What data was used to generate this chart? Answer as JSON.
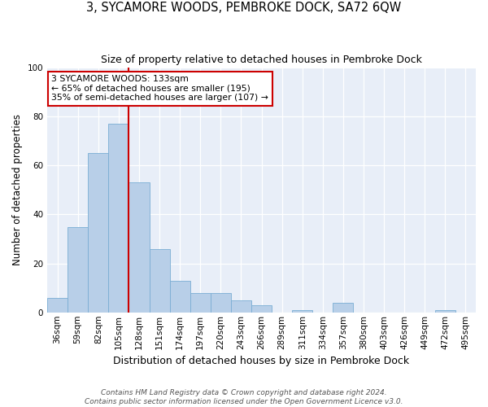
{
  "title": "3, SYCAMORE WOODS, PEMBROKE DOCK, SA72 6QW",
  "subtitle": "Size of property relative to detached houses in Pembroke Dock",
  "xlabel": "Distribution of detached houses by size in Pembroke Dock",
  "ylabel": "Number of detached properties",
  "bin_labels": [
    "36sqm",
    "59sqm",
    "82sqm",
    "105sqm",
    "128sqm",
    "151sqm",
    "174sqm",
    "197sqm",
    "220sqm",
    "243sqm",
    "266sqm",
    "289sqm",
    "311sqm",
    "334sqm",
    "357sqm",
    "380sqm",
    "403sqm",
    "426sqm",
    "449sqm",
    "472sqm",
    "495sqm"
  ],
  "bin_values": [
    6,
    35,
    65,
    77,
    53,
    26,
    13,
    8,
    8,
    5,
    3,
    0,
    1,
    0,
    4,
    0,
    0,
    0,
    0,
    1,
    0
  ],
  "bar_color": "#b8cfe8",
  "bar_edge_color": "#7aadd4",
  "vline_x_index": 4,
  "vline_color": "#cc0000",
  "ylim": [
    0,
    100
  ],
  "annotation_title": "3 SYCAMORE WOODS: 133sqm",
  "annotation_line1": "← 65% of detached houses are smaller (195)",
  "annotation_line2": "35% of semi-detached houses are larger (107) →",
  "annotation_box_facecolor": "#ffffff",
  "annotation_box_edgecolor": "#cc0000",
  "footnote1": "Contains HM Land Registry data © Crown copyright and database right 2024.",
  "footnote2": "Contains public sector information licensed under the Open Government Licence v3.0.",
  "bg_color": "#e8eef8",
  "title_fontsize": 10.5,
  "subtitle_fontsize": 9,
  "xlabel_fontsize": 9,
  "ylabel_fontsize": 8.5,
  "tick_fontsize": 7.5,
  "annotation_fontsize": 7.8,
  "footnote_fontsize": 6.5
}
